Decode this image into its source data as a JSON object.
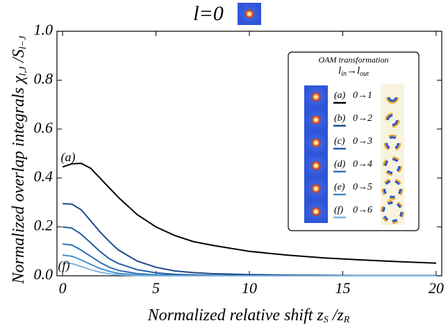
{
  "chart_data": {
    "type": "line",
    "title": "l=0",
    "x_label_parts": [
      "Normalized relative shift z",
      "S",
      " /z",
      "R"
    ],
    "y_label_parts": [
      "Normalized overlap integrals χ",
      "l,J",
      " /S",
      "l−J"
    ],
    "legend_title": "OAM transformation",
    "legend_subtitle_parts": [
      "l",
      "in",
      "→l",
      "out"
    ],
    "x": [
      0,
      0.5,
      1,
      1.5,
      2,
      2.5,
      3,
      4,
      5,
      6,
      7,
      8,
      10,
      12,
      14,
      16,
      18,
      20
    ],
    "series": [
      {
        "label": "(a)",
        "name": "0→1",
        "color": "#000000",
        "values": [
          0.445,
          0.458,
          0.46,
          0.44,
          0.4,
          0.36,
          0.32,
          0.25,
          0.2,
          0.165,
          0.14,
          0.125,
          0.1,
          0.085,
          0.073,
          0.065,
          0.058,
          0.052
        ]
      },
      {
        "label": "(b)",
        "name": "0→2",
        "color": "#1c4a8a",
        "values": [
          0.295,
          0.293,
          0.27,
          0.225,
          0.18,
          0.14,
          0.105,
          0.06,
          0.035,
          0.02,
          0.013,
          0.009,
          0.005,
          0.003,
          0.002,
          0.001,
          0.001,
          0.001
        ]
      },
      {
        "label": "(c)",
        "name": "0→3",
        "color": "#1f5ca6",
        "values": [
          0.2,
          0.195,
          0.17,
          0.135,
          0.1,
          0.07,
          0.05,
          0.025,
          0.012,
          0.006,
          0.004,
          0.002,
          0.001,
          0,
          0,
          0,
          0,
          0
        ]
      },
      {
        "label": "(d)",
        "name": "0→4",
        "color": "#2a72b8",
        "values": [
          0.13,
          0.126,
          0.105,
          0.08,
          0.055,
          0.035,
          0.022,
          0.009,
          0.004,
          0.002,
          0.001,
          0,
          0,
          0,
          0,
          0,
          0,
          0
        ]
      },
      {
        "label": "(e)",
        "name": "0→5",
        "color": "#3f8fcc",
        "values": [
          0.085,
          0.08,
          0.065,
          0.047,
          0.03,
          0.018,
          0.01,
          0.004,
          0.001,
          0,
          0,
          0,
          0,
          0,
          0,
          0,
          0,
          0
        ]
      },
      {
        "label": "(f)",
        "name": "0→6",
        "color": "#80b4dc",
        "values": [
          0.055,
          0.05,
          0.038,
          0.025,
          0.015,
          0.008,
          0.004,
          0.001,
          0,
          0,
          0,
          0,
          0,
          0,
          0,
          0,
          0,
          0
        ]
      }
    ],
    "xlim": [
      -0.3,
      20.3
    ],
    "ylim": [
      0,
      1
    ],
    "xticks": [
      0,
      5,
      10,
      15,
      20
    ],
    "yticks": [
      {
        "value": 0,
        "label": "0.0"
      },
      {
        "value": 0.2,
        "label": "0.2"
      },
      {
        "value": 0.4,
        "label": "0.4"
      },
      {
        "value": 0.6,
        "label": "0.6"
      },
      {
        "value": 0.8,
        "label": "0.8"
      },
      {
        "value": 1,
        "label": "1.0"
      }
    ]
  }
}
